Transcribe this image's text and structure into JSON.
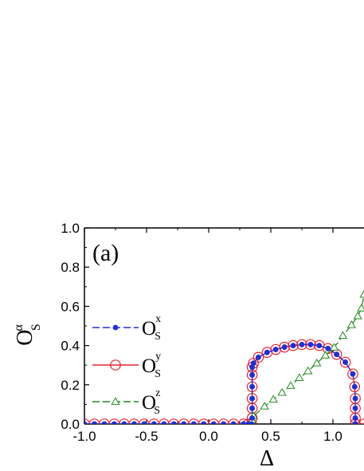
{
  "chart_data": {
    "type": "line",
    "panel_label": "(a)",
    "xlabel": "Δ",
    "ylabel": {
      "base": "O",
      "sup": "α",
      "sub": "S"
    },
    "xlim": [
      -1.0,
      1.25
    ],
    "ylim": [
      0.0,
      1.0
    ],
    "xticks": [
      -1.0,
      -0.5,
      0.0,
      0.5,
      1.0
    ],
    "xtick_labels": [
      "-1.0",
      "-0.5",
      "0.0",
      "0.5",
      "1.0"
    ],
    "yticks": [
      0.0,
      0.2,
      0.4,
      0.6,
      0.8,
      1.0
    ],
    "ytick_labels": [
      "0.0",
      "0.2",
      "0.4",
      "0.6",
      "0.8",
      "1.0"
    ],
    "grid": false,
    "legend_position": "left",
    "series": [
      {
        "name": "O_S^x",
        "legend": {
          "base": "O",
          "sup": "x",
          "sub": "S"
        },
        "color": "#1f2fd6",
        "marker": "filled-circle",
        "line_style": "dashed",
        "x": [
          -1.0,
          -0.92,
          -0.84,
          -0.76,
          -0.68,
          -0.6,
          -0.52,
          -0.44,
          -0.36,
          -0.28,
          -0.2,
          -0.12,
          -0.04,
          0.04,
          0.12,
          0.2,
          0.28,
          0.32,
          0.345,
          0.35,
          0.35,
          0.35,
          0.35,
          0.35,
          0.35,
          0.36,
          0.4,
          0.47,
          0.54,
          0.61,
          0.68,
          0.75,
          0.82,
          0.89,
          0.96,
          1.03,
          1.1,
          1.16,
          1.175,
          1.18,
          1.18,
          1.18,
          1.18,
          1.18
        ],
        "y": [
          0,
          0,
          0,
          0,
          0,
          0,
          0,
          0,
          0,
          0,
          0,
          0,
          0,
          0,
          0,
          0,
          0,
          0,
          0,
          0.03,
          0.08,
          0.13,
          0.19,
          0.25,
          0.29,
          0.31,
          0.34,
          0.365,
          0.38,
          0.392,
          0.4,
          0.405,
          0.405,
          0.4,
          0.385,
          0.355,
          0.315,
          0.255,
          0.19,
          0.13,
          0.08,
          0.03,
          0.0,
          0.0
        ]
      },
      {
        "name": "O_S^y",
        "legend": {
          "base": "O",
          "sup": "y",
          "sub": "S"
        },
        "color": "#e8202a",
        "marker": "open-circle-dot",
        "line_style": "solid",
        "x": [
          -1.0,
          -0.92,
          -0.84,
          -0.76,
          -0.68,
          -0.6,
          -0.52,
          -0.44,
          -0.36,
          -0.28,
          -0.2,
          -0.12,
          -0.04,
          0.04,
          0.12,
          0.2,
          0.28,
          0.32,
          0.345,
          0.35,
          0.35,
          0.35,
          0.35,
          0.35,
          0.35,
          0.36,
          0.4,
          0.47,
          0.54,
          0.61,
          0.68,
          0.75,
          0.82,
          0.89,
          0.96,
          1.03,
          1.1,
          1.16,
          1.175,
          1.18,
          1.18,
          1.18,
          1.18,
          1.18,
          1.25
        ],
        "y": [
          0,
          0,
          0,
          0,
          0,
          0,
          0,
          0,
          0,
          0,
          0,
          0,
          0,
          0,
          0,
          0,
          0,
          0,
          0,
          0.03,
          0.08,
          0.13,
          0.19,
          0.25,
          0.29,
          0.31,
          0.34,
          0.365,
          0.38,
          0.392,
          0.4,
          0.405,
          0.405,
          0.4,
          0.385,
          0.355,
          0.315,
          0.255,
          0.19,
          0.13,
          0.08,
          0.03,
          0.0,
          0.0,
          0.0
        ]
      },
      {
        "name": "O_S^z",
        "legend": {
          "base": "O",
          "sup": "z",
          "sub": "S"
        },
        "color": "#1f8a1f",
        "marker": "open-triangle",
        "line_style": "dashed",
        "x": [
          0.33,
          0.35,
          0.36,
          0.45,
          0.52,
          0.59,
          0.66,
          0.73,
          0.8,
          0.87,
          0.94,
          1.01,
          1.08,
          1.15,
          1.2,
          1.23,
          1.25
        ],
        "y": [
          0.0,
          0.02,
          0.04,
          0.09,
          0.125,
          0.16,
          0.195,
          0.235,
          0.27,
          0.31,
          0.35,
          0.39,
          0.45,
          0.505,
          0.55,
          0.59,
          0.66
        ]
      }
    ]
  }
}
